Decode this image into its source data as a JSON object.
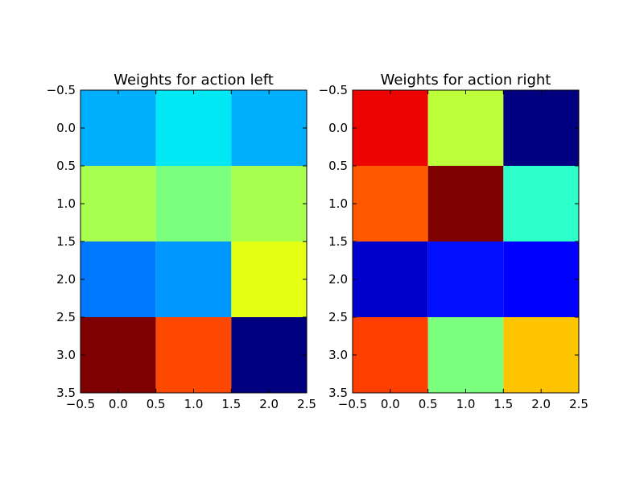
{
  "chart_data": [
    {
      "type": "heatmap",
      "title": "Weights for action left",
      "xlabel": "",
      "ylabel": "",
      "xlim": [
        -0.5,
        2.5
      ],
      "ylim": [
        3.5,
        -0.5
      ],
      "xticks": [
        "−0.5",
        "0.0",
        "0.5",
        "1.0",
        "1.5",
        "2.0",
        "2.5"
      ],
      "yticks": [
        "−0.5",
        "0.0",
        "0.5",
        "1.0",
        "1.5",
        "2.0",
        "2.5",
        "3.0",
        "3.5"
      ],
      "grid": false,
      "colormap": "jet",
      "cell_colors": [
        [
          "#00b0ff",
          "#00e8f4",
          "#00b0ff"
        ],
        [
          "#a9ff4e",
          "#7aff7e",
          "#a9ff4e"
        ],
        [
          "#0078ff",
          "#0098ff",
          "#e4ff13"
        ],
        [
          "#7f0000",
          "#ff4800",
          "#000080"
        ]
      ]
    },
    {
      "type": "heatmap",
      "title": "Weights for action right",
      "xlabel": "",
      "ylabel": "",
      "xlim": [
        -0.5,
        2.5
      ],
      "ylim": [
        3.5,
        -0.5
      ],
      "xticks": [
        "−0.5",
        "0.0",
        "0.5",
        "1.0",
        "1.5",
        "2.0",
        "2.5"
      ],
      "yticks": [
        "−0.5",
        "0.0",
        "0.5",
        "1.0",
        "1.5",
        "2.0",
        "2.5",
        "3.0",
        "3.5"
      ],
      "grid": false,
      "colormap": "jet",
      "cell_colors": [
        [
          "#ed0400",
          "#bdff3a",
          "#000080"
        ],
        [
          "#ff5900",
          "#7f0000",
          "#2cffca"
        ],
        [
          "#0000cd",
          "#0010ff",
          "#0000ff"
        ],
        [
          "#ff3f00",
          "#7aff7e",
          "#ffc400"
        ]
      ]
    }
  ]
}
